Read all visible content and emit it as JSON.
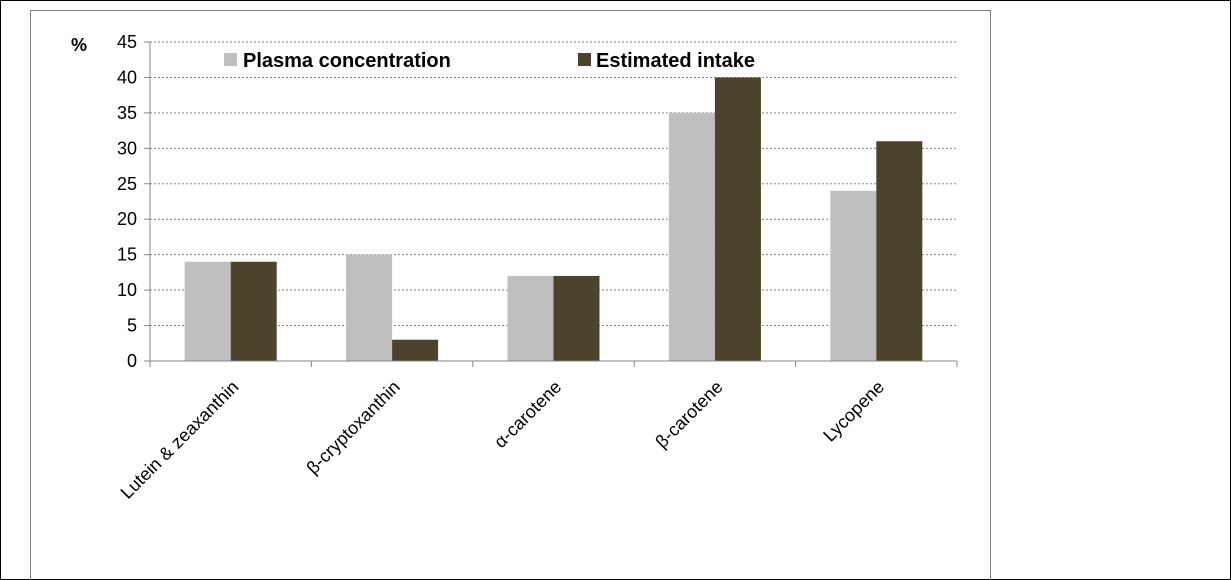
{
  "chart_data": {
    "type": "bar",
    "y_unit_label": "%",
    "categories": [
      "Lutein & zeaxanthin",
      "β-cryptoxanthin",
      "α-carotene",
      "β-carotene",
      "Lycopene"
    ],
    "series": [
      {
        "name": "Plasma concentration",
        "values": [
          14,
          15,
          12,
          35,
          24
        ],
        "color": "#bfbfbf"
      },
      {
        "name": "Estimated intake",
        "values": [
          14,
          3,
          12,
          40,
          31
        ],
        "color": "#4b432c"
      }
    ],
    "ylim": [
      0,
      45
    ],
    "yticks": [
      0,
      5,
      10,
      15,
      20,
      25,
      30,
      35,
      40,
      45
    ],
    "grid": true,
    "legend_position": "top"
  }
}
